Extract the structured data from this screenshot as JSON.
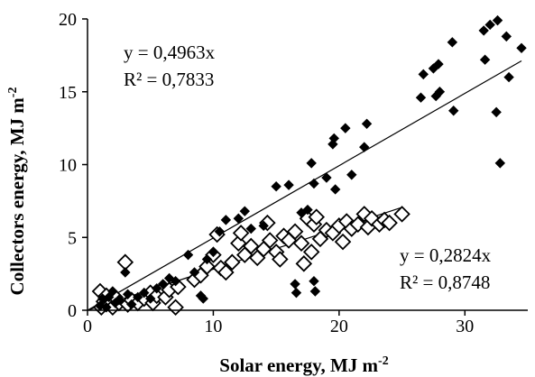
{
  "chart_data": {
    "type": "scatter",
    "title": "",
    "xlabel": "Solar energy, MJ m",
    "xlabel_sup": "-2",
    "ylabel": "Collectors energy, MJ m",
    "ylabel_sup": "-2",
    "xlim": [
      0,
      35
    ],
    "ylim": [
      0,
      20
    ],
    "xticks": [
      0,
      10,
      20,
      30
    ],
    "yticks": [
      0,
      5,
      10,
      15,
      20
    ],
    "grid": false,
    "colors": {
      "series_a": "#000000",
      "series_b": "#000000"
    },
    "annotations": {
      "series_a_eq": "y = 0,4963x",
      "series_a_r2": "R² = 0,7833",
      "series_b_eq": "y = 0,2824x",
      "series_b_r2": "R² = 0,8748"
    },
    "series": [
      {
        "marker": "filled-diamond",
        "trendline_slope": 0.4963,
        "points": [
          [
            1,
            0.3
          ],
          [
            1.2,
            0.8
          ],
          [
            1.5,
            0.2
          ],
          [
            1.7,
            0.9
          ],
          [
            2,
            1.3
          ],
          [
            2.2,
            0.5
          ],
          [
            2.5,
            0.7
          ],
          [
            3,
            2.6
          ],
          [
            3.2,
            1.1
          ],
          [
            3.5,
            0.4
          ],
          [
            4,
            0.9
          ],
          [
            4.5,
            1.2
          ],
          [
            5,
            0.8
          ],
          [
            5.5,
            1.5
          ],
          [
            6,
            1.8
          ],
          [
            6.5,
            2.2
          ],
          [
            7,
            2.0
          ],
          [
            8,
            3.8
          ],
          [
            8.5,
            2.6
          ],
          [
            9,
            1.0
          ],
          [
            9.2,
            0.8
          ],
          [
            9.5,
            3.5
          ],
          [
            10,
            4.0
          ],
          [
            10.5,
            5.4
          ],
          [
            11,
            6.2
          ],
          [
            12,
            6.3
          ],
          [
            12.5,
            6.8
          ],
          [
            13,
            5.6
          ],
          [
            14,
            5.8
          ],
          [
            15,
            8.5
          ],
          [
            16,
            8.6
          ],
          [
            16.5,
            1.8
          ],
          [
            16.6,
            1.2
          ],
          [
            17,
            6.7
          ],
          [
            17.5,
            6.9
          ],
          [
            17.8,
            10.1
          ],
          [
            18,
            8.7
          ],
          [
            18,
            2.0
          ],
          [
            18.1,
            1.3
          ],
          [
            19,
            9.1
          ],
          [
            19.5,
            11.4
          ],
          [
            19.6,
            11.8
          ],
          [
            19.7,
            8.3
          ],
          [
            20.5,
            12.5
          ],
          [
            21,
            9.3
          ],
          [
            22,
            11.2
          ],
          [
            22.2,
            12.8
          ],
          [
            26.5,
            14.6
          ],
          [
            26.7,
            16.2
          ],
          [
            27.5,
            16.6
          ],
          [
            27.7,
            14.7
          ],
          [
            27.9,
            16.9
          ],
          [
            28,
            15.0
          ],
          [
            29,
            18.4
          ],
          [
            29.1,
            13.7
          ],
          [
            31.5,
            19.2
          ],
          [
            31.6,
            17.2
          ],
          [
            32,
            19.6
          ],
          [
            32.6,
            19.9
          ],
          [
            32.5,
            13.6
          ],
          [
            32.8,
            10.1
          ],
          [
            33.3,
            18.8
          ],
          [
            33.5,
            16.0
          ],
          [
            34.5,
            18.0
          ]
        ]
      },
      {
        "marker": "open-diamond",
        "trendline_slope": 0.2824,
        "points": [
          [
            1,
            1.3
          ],
          [
            1.1,
            0.2
          ],
          [
            1.3,
            0.6
          ],
          [
            1.5,
            1.0
          ],
          [
            1.8,
            0.4
          ],
          [
            2,
            0.2
          ],
          [
            2.2,
            0.9
          ],
          [
            2.5,
            0.5
          ],
          [
            3,
            3.3
          ],
          [
            3.2,
            0.4
          ],
          [
            3.5,
            0.7
          ],
          [
            4,
            0.5
          ],
          [
            4.5,
            0.8
          ],
          [
            5,
            1.2
          ],
          [
            5.2,
            0.5
          ],
          [
            5.5,
            1.0
          ],
          [
            6,
            1.5
          ],
          [
            6.2,
            0.9
          ],
          [
            6.5,
            1.4
          ],
          [
            7,
            0.2
          ],
          [
            7.2,
            1.6
          ],
          [
            8.5,
            2.1
          ],
          [
            9,
            2.4
          ],
          [
            9.5,
            3.0
          ],
          [
            10,
            3.8
          ],
          [
            10.3,
            5.2
          ],
          [
            10.6,
            2.9
          ],
          [
            11,
            2.6
          ],
          [
            11.5,
            3.3
          ],
          [
            12,
            4.6
          ],
          [
            12.2,
            5.3
          ],
          [
            12.5,
            3.8
          ],
          [
            13,
            4.4
          ],
          [
            13.5,
            3.6
          ],
          [
            14,
            4.2
          ],
          [
            14.3,
            6.0
          ],
          [
            14.5,
            4.8
          ],
          [
            15,
            4.0
          ],
          [
            15.3,
            3.5
          ],
          [
            15.6,
            5.1
          ],
          [
            16,
            4.8
          ],
          [
            16.5,
            5.4
          ],
          [
            17,
            4.6
          ],
          [
            17.2,
            3.2
          ],
          [
            17.5,
            6.3
          ],
          [
            17.8,
            4.0
          ],
          [
            18,
            5.9
          ],
          [
            18.2,
            6.4
          ],
          [
            18.5,
            4.9
          ],
          [
            19,
            5.5
          ],
          [
            19.5,
            5.3
          ],
          [
            20,
            5.8
          ],
          [
            20.3,
            4.7
          ],
          [
            20.6,
            6.1
          ],
          [
            21,
            5.6
          ],
          [
            21.5,
            5.9
          ],
          [
            22,
            6.6
          ],
          [
            22.3,
            5.7
          ],
          [
            22.6,
            6.3
          ],
          [
            23.2,
            5.9
          ],
          [
            23.6,
            6.2
          ],
          [
            24,
            6.0
          ],
          [
            25,
            6.6
          ]
        ]
      }
    ]
  }
}
